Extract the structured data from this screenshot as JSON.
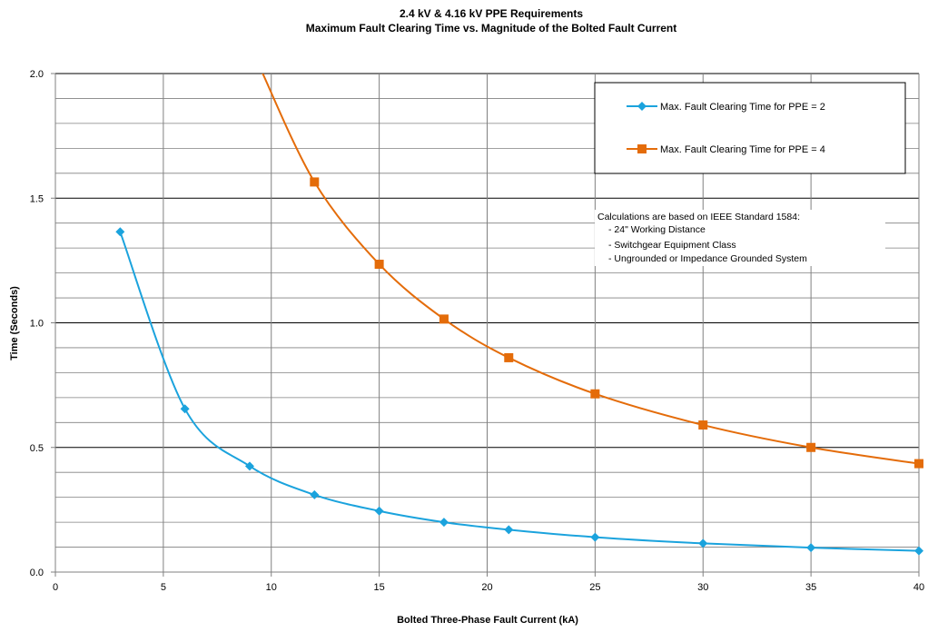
{
  "chart_data": {
    "type": "line",
    "title": "2.4 kV & 4.16 kV PPE Requirements",
    "subtitle": "Maximum Fault Clearing Time vs. Magnitude of the Bolted Fault Current",
    "xlabel": "Bolted Three-Phase Fault Current (kA)",
    "ylabel": "Time (Seconds)",
    "xlim": [
      0,
      40
    ],
    "ylim": [
      0,
      2.0
    ],
    "x_ticks": [
      0,
      5,
      10,
      15,
      20,
      25,
      30,
      35,
      40
    ],
    "x_tick_labels": [
      "0",
      "5",
      "10",
      "15",
      "20",
      "25",
      "30",
      "35",
      "40"
    ],
    "y_ticks": [
      0,
      0.5,
      1.0,
      1.5,
      2.0
    ],
    "y_tick_labels": [
      "0.0",
      "0.5",
      "1.0",
      "1.5",
      "2.0"
    ],
    "grid": true,
    "legend_position": "top-right",
    "series": [
      {
        "name": "Max. Fault Clearing Time for PPE = 2",
        "color": "#1BA3DD",
        "marker": "diamond",
        "x": [
          3,
          6,
          9,
          12,
          15,
          18,
          21,
          25,
          30,
          35,
          40
        ],
        "y": [
          1.365,
          0.655,
          0.425,
          0.31,
          0.245,
          0.2,
          0.17,
          0.14,
          0.115,
          0.098,
          0.085
        ]
      },
      {
        "name": "Max. Fault Clearing Time for PPE = 4",
        "color": "#E46C0A",
        "marker": "square",
        "x": [
          12,
          15,
          18,
          21,
          25,
          30,
          35,
          40
        ],
        "y": [
          1.565,
          1.235,
          1.015,
          0.86,
          0.715,
          0.59,
          0.5,
          0.435
        ],
        "line_extends_to_x": 9.5,
        "line_extends_to_y": 2.02
      }
    ],
    "annotation": {
      "heading": "Calculations are based on IEEE  Standard 1584:",
      "lines": [
        "- 24\" Working Distance",
        "- Switchgear Equipment Class",
        "- Ungrounded or Impedance Grounded System"
      ]
    }
  }
}
